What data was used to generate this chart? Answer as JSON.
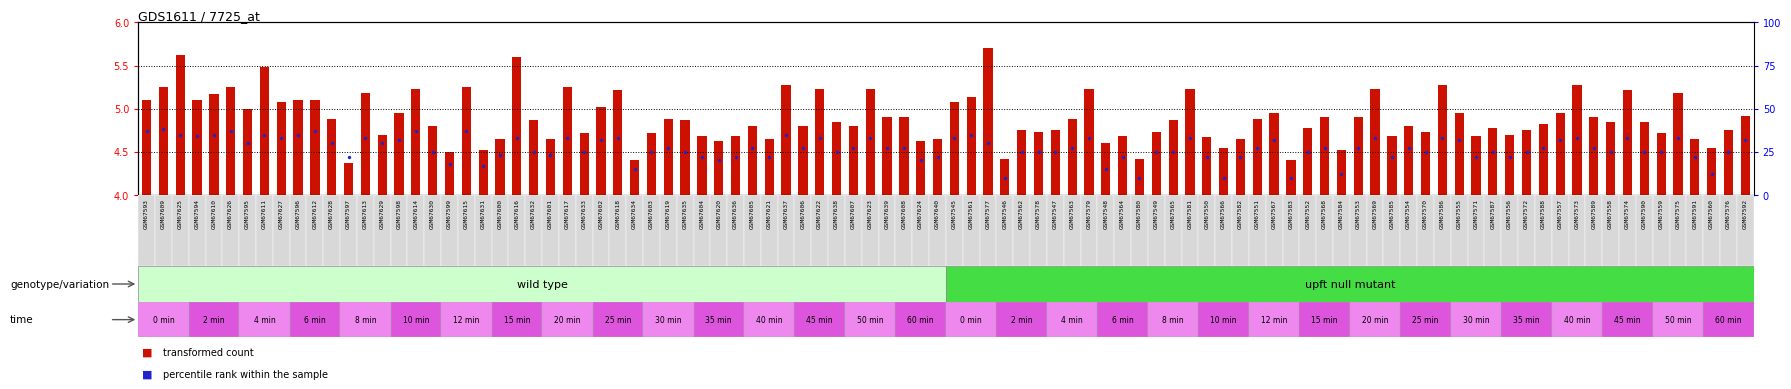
{
  "title": "GDS1611 / 7725_at",
  "title_fontsize": 9,
  "ylim_left": [
    4.0,
    6.0
  ],
  "ylim_right": [
    0,
    100
  ],
  "yticks_left": [
    4.0,
    4.5,
    5.0,
    5.5,
    6.0
  ],
  "yticks_right": [
    0,
    25,
    50,
    75,
    100
  ],
  "hlines": [
    4.5,
    5.0,
    5.5
  ],
  "bar_color": "#cc1100",
  "dot_color": "#2222cc",
  "bar_bottom": 4.0,
  "samples": [
    "GSM67593",
    "GSM67609",
    "GSM67625",
    "GSM67594",
    "GSM67610",
    "GSM67626",
    "GSM67595",
    "GSM67611",
    "GSM67627",
    "GSM67596",
    "GSM67612",
    "GSM67628",
    "GSM67597",
    "GSM67613",
    "GSM67629",
    "GSM67598",
    "GSM67614",
    "GSM67630",
    "GSM67599",
    "GSM67615",
    "GSM67631",
    "GSM67600",
    "GSM67616",
    "GSM67632",
    "GSM67601",
    "GSM67617",
    "GSM67633",
    "GSM67602",
    "GSM67618",
    "GSM67634",
    "GSM67603",
    "GSM67619",
    "GSM67635",
    "GSM67604",
    "GSM67620",
    "GSM67636",
    "GSM67605",
    "GSM67621",
    "GSM67637",
    "GSM67606",
    "GSM67622",
    "GSM67638",
    "GSM67607",
    "GSM67623",
    "GSM67639",
    "GSM67608",
    "GSM67624",
    "GSM67640",
    "GSM67545",
    "GSM67561",
    "GSM67577",
    "GSM67546",
    "GSM67562",
    "GSM67578",
    "GSM67547",
    "GSM67563",
    "GSM67579",
    "GSM67548",
    "GSM67564",
    "GSM67580",
    "GSM67549",
    "GSM67565",
    "GSM67581",
    "GSM67550",
    "GSM67566",
    "GSM67582",
    "GSM67551",
    "GSM67567",
    "GSM67583",
    "GSM67552",
    "GSM67568",
    "GSM67584",
    "GSM67553",
    "GSM67569",
    "GSM67585",
    "GSM67554",
    "GSM67570",
    "GSM67586",
    "GSM67555",
    "GSM67571",
    "GSM67587",
    "GSM67556",
    "GSM67572",
    "GSM67588",
    "GSM67557",
    "GSM67573",
    "GSM67589",
    "GSM67558",
    "GSM67574",
    "GSM67590",
    "GSM67559",
    "GSM67575",
    "GSM67591",
    "GSM67560",
    "GSM67576",
    "GSM67592"
  ],
  "bar_values": [
    5.1,
    5.25,
    5.62,
    5.1,
    5.17,
    5.25,
    5.0,
    5.48,
    5.08,
    5.1,
    5.1,
    4.88,
    4.37,
    5.18,
    4.7,
    4.95,
    5.23,
    4.8,
    4.5,
    5.25,
    4.52,
    4.65,
    5.6,
    4.87,
    4.65,
    5.25,
    4.72,
    5.02,
    5.22,
    4.4,
    4.72,
    4.88,
    4.87,
    4.68,
    4.63,
    4.68,
    4.8,
    4.65,
    5.28,
    4.8,
    5.23,
    4.85,
    4.8,
    5.23,
    4.9,
    4.9,
    4.63,
    4.65,
    5.08,
    5.13,
    5.7,
    4.42,
    4.75,
    4.73,
    4.75,
    4.88,
    5.23,
    4.6,
    4.68,
    4.42,
    4.73,
    4.87,
    5.23,
    4.67,
    4.55,
    4.65,
    4.88,
    4.95,
    4.4,
    4.78,
    4.9,
    4.52,
    4.9,
    5.23,
    4.68,
    4.8,
    4.73,
    5.28,
    4.95,
    4.68,
    4.78,
    4.7,
    4.75,
    4.82,
    4.95,
    5.28,
    4.9,
    4.85,
    5.22,
    4.85,
    4.72,
    5.18,
    4.65,
    4.55,
    4.75,
    4.92
  ],
  "dot_values_pct": [
    37,
    38,
    35,
    34,
    35,
    37,
    30,
    35,
    33,
    35,
    37,
    30,
    22,
    33,
    30,
    32,
    37,
    25,
    18,
    37,
    17,
    23,
    33,
    25,
    23,
    33,
    25,
    32,
    33,
    15,
    25,
    27,
    25,
    22,
    20,
    22,
    27,
    22,
    35,
    27,
    33,
    25,
    27,
    33,
    27,
    27,
    20,
    22,
    33,
    35,
    30,
    10,
    25,
    25,
    25,
    27,
    33,
    15,
    22,
    10,
    25,
    25,
    33,
    22,
    10,
    22,
    27,
    32,
    10,
    25,
    27,
    12,
    27,
    33,
    22,
    27,
    25,
    33,
    32,
    22,
    25,
    22,
    25,
    27,
    32,
    33,
    27,
    25,
    33,
    25,
    25,
    33,
    22,
    12,
    25,
    32
  ],
  "wt_count": 48,
  "upft_count": 48,
  "wild_type_label": "wild type",
  "upft_label": "upft null mutant",
  "genotype_label": "genotype/variation",
  "time_label": "time",
  "wt_time_labels": [
    "0 min",
    "2 min",
    "4 min",
    "6 min",
    "8 min",
    "10 min",
    "12 min",
    "15 min",
    "20 min",
    "25 min",
    "30 min",
    "35 min",
    "40 min",
    "45 min",
    "50 min",
    "60 min"
  ],
  "upft_time_labels": [
    "0 min",
    "2 min",
    "4 min",
    "6 min",
    "8 min",
    "10 min",
    "12 min",
    "15 min",
    "20 min",
    "25 min",
    "30 min",
    "35 min",
    "40 min",
    "45 min",
    "50 min",
    "60 min"
  ],
  "time_color_1": "#ee88ee",
  "time_color_2": "#dd55dd",
  "wt_color": "#ccffcc",
  "upft_color": "#44dd44",
  "xtick_bg": "#d8d8d8",
  "legend_bar_label": "transformed count",
  "legend_dot_label": "percentile rank within the sample"
}
